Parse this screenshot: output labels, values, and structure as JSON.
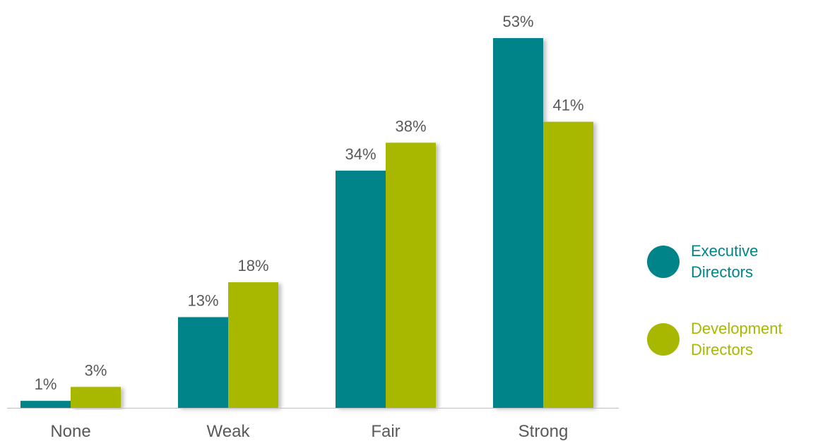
{
  "chart_data": {
    "type": "bar",
    "categories": [
      "None",
      "Weak",
      "Fair",
      "Strong"
    ],
    "series": [
      {
        "name": "Executive Directors",
        "values": [
          1,
          13,
          34,
          53
        ],
        "labels": [
          "1%",
          "13%",
          "34%",
          "53%"
        ],
        "color": "#00848A"
      },
      {
        "name": "Development Directors",
        "values": [
          3,
          18,
          38,
          41
        ],
        "labels": [
          "3%",
          "18%",
          "38%",
          "41%"
        ],
        "color": "#A8B800"
      }
    ],
    "ylim": [
      0,
      53
    ],
    "grid": false,
    "legend_position": "right"
  }
}
